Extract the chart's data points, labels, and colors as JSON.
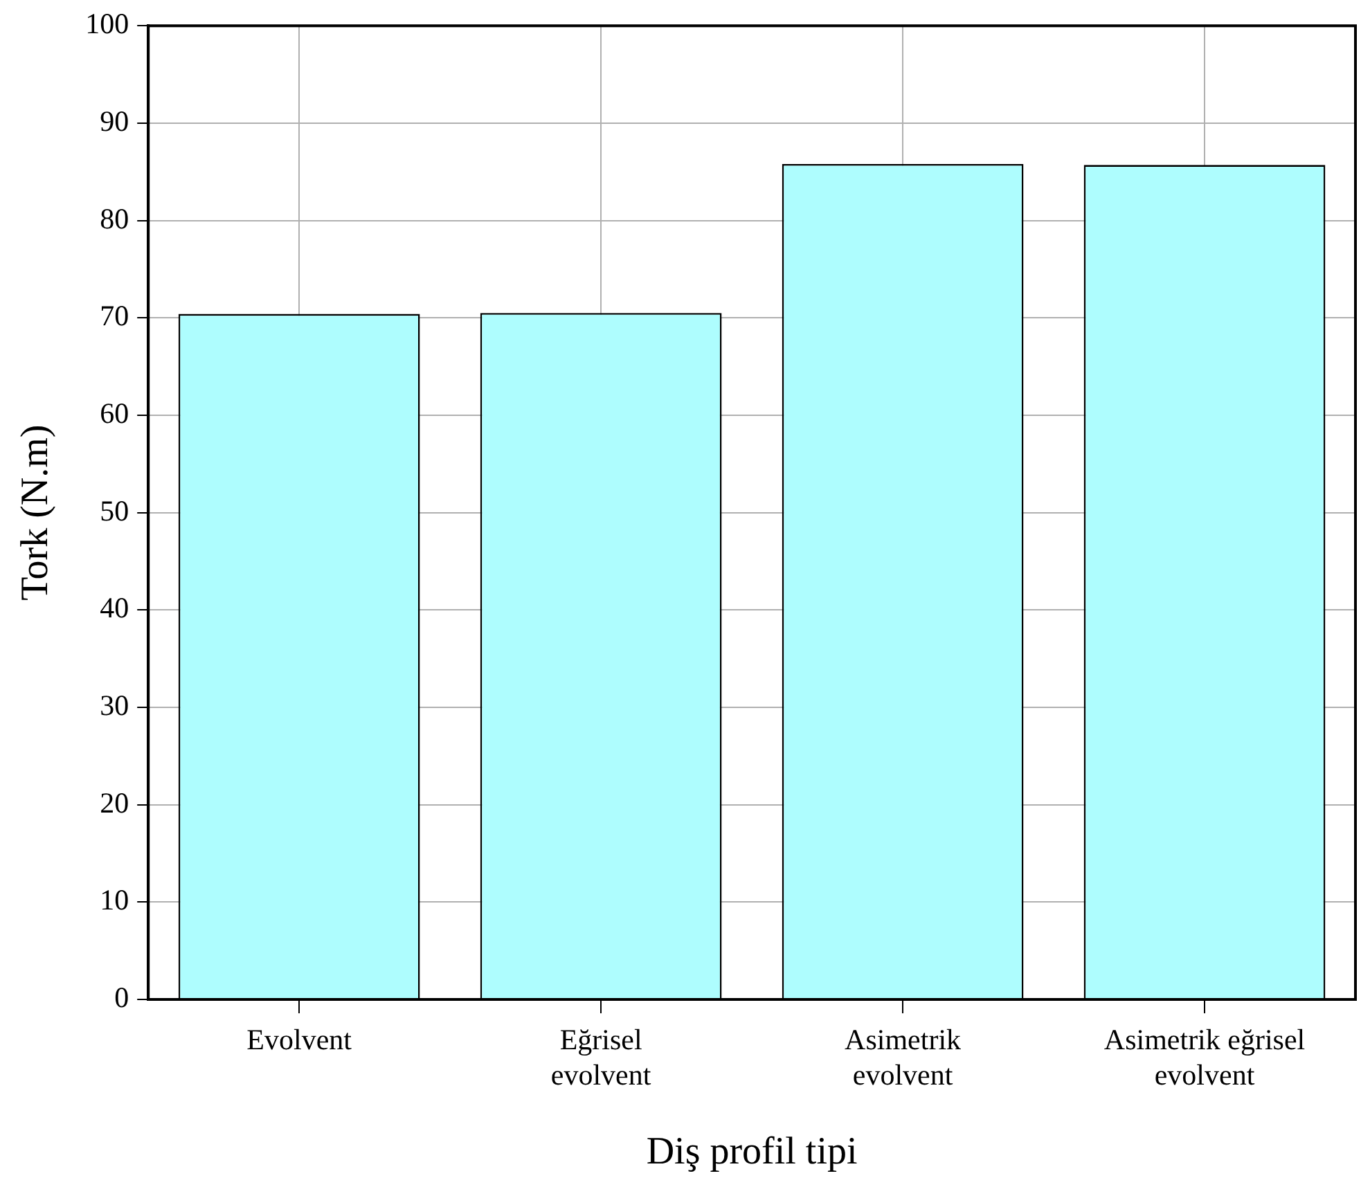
{
  "chart_data": {
    "type": "bar",
    "xlabel": "Diş profil tipi",
    "ylabel": "Tork (N.m)",
    "categories": [
      "Evolvent",
      "Eğrisel\nevolvent",
      "Asimetrik\nevolvent",
      "Asimetrik eğrisel\nevolvent"
    ],
    "values": [
      70.4,
      70.5,
      85.8,
      85.7
    ],
    "color": "#aefdfe",
    "ylim": [
      0,
      100
    ],
    "yticks": [
      0,
      10,
      20,
      30,
      40,
      50,
      60,
      70,
      80,
      90,
      100
    ],
    "grid": true,
    "legend": false
  }
}
